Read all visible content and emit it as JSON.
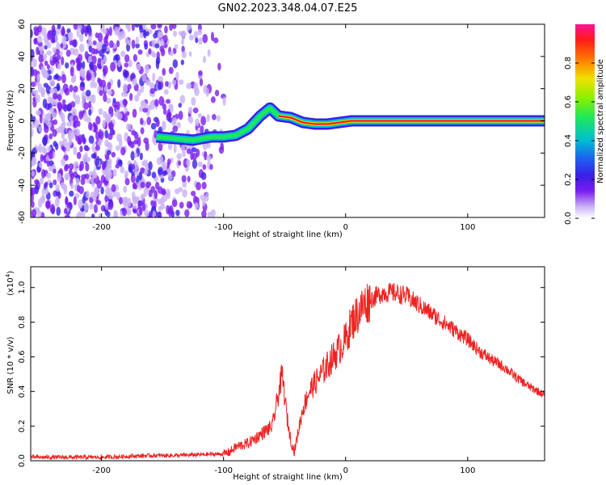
{
  "title": "GN02.2023.348.04.07.E25",
  "chart_data": [
    {
      "type": "heatmap",
      "xlabel": "Height of straight line (km)",
      "ylabel": "Frequency (Hz)",
      "xlim": [
        -258,
        163
      ],
      "ylim": [
        -60,
        60
      ],
      "xticks": [
        -200,
        -100,
        0,
        100
      ],
      "yticks": [
        60,
        40,
        20,
        0,
        -20,
        -40,
        -60
      ],
      "ytick_labels": [
        "60",
        "40",
        "20",
        "0",
        "-20",
        "-40",
        "-60"
      ],
      "colorbar": {
        "label": "Normalized spectral amplitude",
        "range": [
          0,
          1
        ],
        "ticks": [
          0.0,
          0.2,
          0.4,
          0.6,
          0.8
        ],
        "tick_labels": [
          "0.0",
          "0.2",
          "0.4",
          "0.6",
          "0.8"
        ],
        "colormap": [
          "#ffffff",
          "#c9b2f5",
          "#7a1df0",
          "#3a1fe6",
          "#1f5af0",
          "#00bcd4",
          "#1ee85a",
          "#8af000",
          "#f0e000",
          "#ff7a00",
          "#ff1a1a",
          "#ff1493"
        ]
      },
      "ridge": {
        "description_free_points": [
          [
            -155,
            -10
          ],
          [
            -140,
            -11
          ],
          [
            -125,
            -12
          ],
          [
            -110,
            -10
          ],
          [
            -100,
            -10
          ],
          [
            -90,
            -9
          ],
          [
            -80,
            -5
          ],
          [
            -70,
            3
          ],
          [
            -62,
            8
          ],
          [
            -55,
            3
          ],
          [
            -45,
            2
          ],
          [
            -35,
            -1
          ],
          [
            -25,
            -2
          ],
          [
            -15,
            -2
          ],
          [
            -5,
            -1
          ],
          [
            5,
            0
          ],
          [
            15,
            0
          ],
          [
            25,
            0
          ],
          [
            40,
            0
          ],
          [
            60,
            0
          ],
          [
            100,
            0
          ],
          [
            163,
            0
          ]
        ]
      }
    },
    {
      "type": "line",
      "xlabel": "Height of straight line (km)",
      "ylabel": "SNR (10 * v/v)",
      "yscale_note": "(x10",
      "yscale_exp": "4",
      "xlim": [
        -258,
        163
      ],
      "ylim": [
        0,
        1.12
      ],
      "xticks": [
        -200,
        -100,
        0,
        100
      ],
      "yticks": [
        0.0,
        0.2,
        0.4,
        0.6,
        0.8,
        1.0
      ],
      "ytick_labels": [
        "0.0",
        "0.2",
        "0.4",
        "0.6",
        "0.8",
        "1.0"
      ],
      "line_color": "#ee2222",
      "x": [
        -258,
        -240,
        -220,
        -200,
        -180,
        -160,
        -140,
        -120,
        -100,
        -95,
        -90,
        -80,
        -70,
        -60,
        -56,
        -52,
        -48,
        -45,
        -42,
        -38,
        -35,
        -30,
        -25,
        -20,
        -15,
        -10,
        -5,
        0,
        5,
        10,
        15,
        20,
        25,
        30,
        40,
        50,
        60,
        70,
        80,
        90,
        100,
        110,
        120,
        130,
        140,
        150,
        163
      ],
      "y": [
        0.02,
        0.02,
        0.02,
        0.02,
        0.025,
        0.03,
        0.03,
        0.035,
        0.04,
        0.05,
        0.08,
        0.1,
        0.15,
        0.2,
        0.35,
        0.5,
        0.25,
        0.12,
        0.05,
        0.2,
        0.3,
        0.4,
        0.45,
        0.5,
        0.55,
        0.6,
        0.65,
        0.7,
        0.8,
        0.85,
        0.9,
        0.93,
        0.95,
        0.97,
        0.97,
        0.95,
        0.9,
        0.85,
        0.8,
        0.75,
        0.7,
        0.63,
        0.58,
        0.54,
        0.48,
        0.43,
        0.38
      ]
    }
  ]
}
